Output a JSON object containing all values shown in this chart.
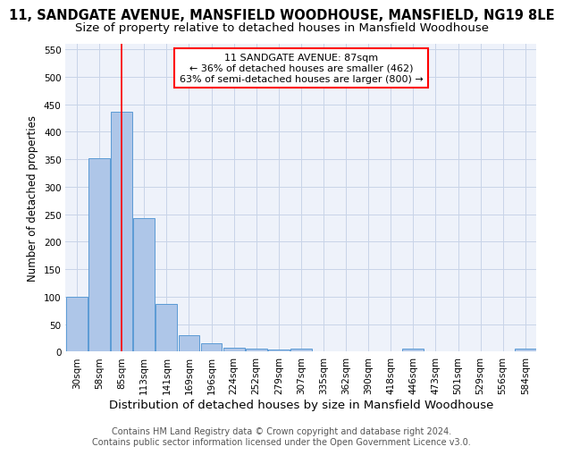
{
  "title": "11, SANDGATE AVENUE, MANSFIELD WOODHOUSE, MANSFIELD, NG19 8LE",
  "subtitle": "Size of property relative to detached houses in Mansfield Woodhouse",
  "xlabel": "Distribution of detached houses by size in Mansfield Woodhouse",
  "ylabel": "Number of detached properties",
  "footer_line1": "Contains HM Land Registry data © Crown copyright and database right 2024.",
  "footer_line2": "Contains public sector information licensed under the Open Government Licence v3.0.",
  "bar_labels": [
    "30sqm",
    "58sqm",
    "85sqm",
    "113sqm",
    "141sqm",
    "169sqm",
    "196sqm",
    "224sqm",
    "252sqm",
    "279sqm",
    "307sqm",
    "335sqm",
    "362sqm",
    "390sqm",
    "418sqm",
    "446sqm",
    "473sqm",
    "501sqm",
    "529sqm",
    "556sqm",
    "584sqm"
  ],
  "bar_values": [
    100,
    352,
    437,
    243,
    87,
    30,
    15,
    8,
    5,
    4,
    5,
    0,
    0,
    0,
    0,
    5,
    0,
    0,
    0,
    0,
    5
  ],
  "bar_color": "#aec6e8",
  "bar_edge_color": "#5b9bd5",
  "vline_index": 2,
  "vline_color": "red",
  "annotation_text": "11 SANDGATE AVENUE: 87sqm\n← 36% of detached houses are smaller (462)\n63% of semi-detached houses are larger (800) →",
  "annotation_box_color": "white",
  "annotation_box_edge": "red",
  "ylim": [
    0,
    560
  ],
  "yticks": [
    0,
    50,
    100,
    150,
    200,
    250,
    300,
    350,
    400,
    450,
    500,
    550
  ],
  "background_color": "#eef2fa",
  "grid_color": "#c8d4e8",
  "title_fontsize": 10.5,
  "subtitle_fontsize": 9.5,
  "xlabel_fontsize": 9.5,
  "ylabel_fontsize": 8.5,
  "tick_fontsize": 7.5,
  "annotation_fontsize": 8,
  "footer_fontsize": 7
}
